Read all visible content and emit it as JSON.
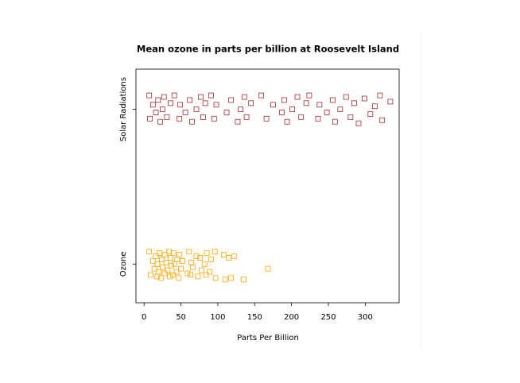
{
  "chart_data": {
    "type": "strip",
    "title": "Mean ozone in parts per billion at Roosevelt Island",
    "x_label": "Parts Per Billion",
    "xlim": [
      -11,
      346
    ],
    "xticks": [
      0,
      50,
      100,
      150,
      200,
      250,
      300
    ],
    "ylim": [
      0.75,
      2.26
    ],
    "yticks": [
      {
        "value": 1,
        "label": "Ozone"
      },
      {
        "value": 2,
        "label": "Solar Radiations"
      }
    ],
    "series": [
      {
        "name": "Ozone",
        "color": "#ffa500",
        "x": [
          7,
          9,
          12,
          14,
          16,
          18,
          18,
          20,
          21,
          23,
          24,
          25,
          28,
          28,
          30,
          32,
          34,
          35,
          36,
          37,
          39,
          40,
          41,
          44,
          45,
          47,
          48,
          50,
          52,
          59,
          61,
          63,
          64,
          66,
          71,
          73,
          76,
          78,
          82,
          84,
          85,
          89,
          91,
          96,
          97,
          108,
          110,
          115,
          118,
          122,
          135,
          168
        ],
        "y": [
          1.08,
          0.93,
          1.02,
          0.97,
          1.05,
          0.92,
          1.0,
          0.95,
          1.07,
          0.91,
          1.03,
          0.98,
          1.06,
          0.94,
          1.01,
          0.96,
          1.08,
          0.92,
          1.04,
          0.99,
          0.93,
          1.07,
          1.0,
          0.95,
          1.03,
          0.91,
          1.06,
          0.97,
          1.02,
          0.94,
          1.08,
          0.93,
          1.01,
          0.98,
          1.05,
          0.92,
          1.04,
          0.96,
          1.0,
          0.93,
          1.07,
          0.95,
          1.03,
          1.08,
          0.91,
          1.06,
          0.9,
          1.04,
          0.91,
          1.05,
          0.9,
          0.97
        ]
      },
      {
        "name": "Solar Radiations",
        "color": "#a52a2a",
        "x": [
          7,
          8,
          12,
          16,
          19,
          22,
          25,
          27,
          31,
          36,
          41,
          48,
          49,
          56,
          62,
          65,
          71,
          77,
          80,
          83,
          91,
          95,
          98,
          112,
          118,
          127,
          131,
          136,
          139,
          145,
          159,
          166,
          175,
          187,
          190,
          194,
          201,
          208,
          213,
          220,
          224,
          236,
          238,
          248,
          256,
          259,
          266,
          274,
          280,
          285,
          291,
          299,
          307,
          313,
          320,
          323,
          334
        ],
        "y": [
          2.09,
          1.94,
          2.03,
          1.98,
          2.06,
          1.92,
          2.0,
          2.08,
          1.95,
          2.04,
          2.09,
          1.94,
          2.03,
          1.98,
          2.06,
          1.92,
          2.0,
          2.08,
          1.95,
          2.04,
          2.09,
          1.94,
          2.03,
          1.98,
          2.06,
          1.92,
          2.0,
          2.08,
          1.95,
          2.04,
          2.09,
          1.94,
          2.03,
          1.98,
          2.06,
          1.92,
          2.0,
          2.08,
          1.95,
          2.04,
          2.09,
          1.94,
          2.03,
          1.98,
          2.06,
          1.92,
          2.0,
          2.08,
          1.95,
          2.04,
          1.91,
          2.07,
          1.97,
          2.02,
          2.09,
          1.93,
          2.05
        ]
      }
    ]
  }
}
